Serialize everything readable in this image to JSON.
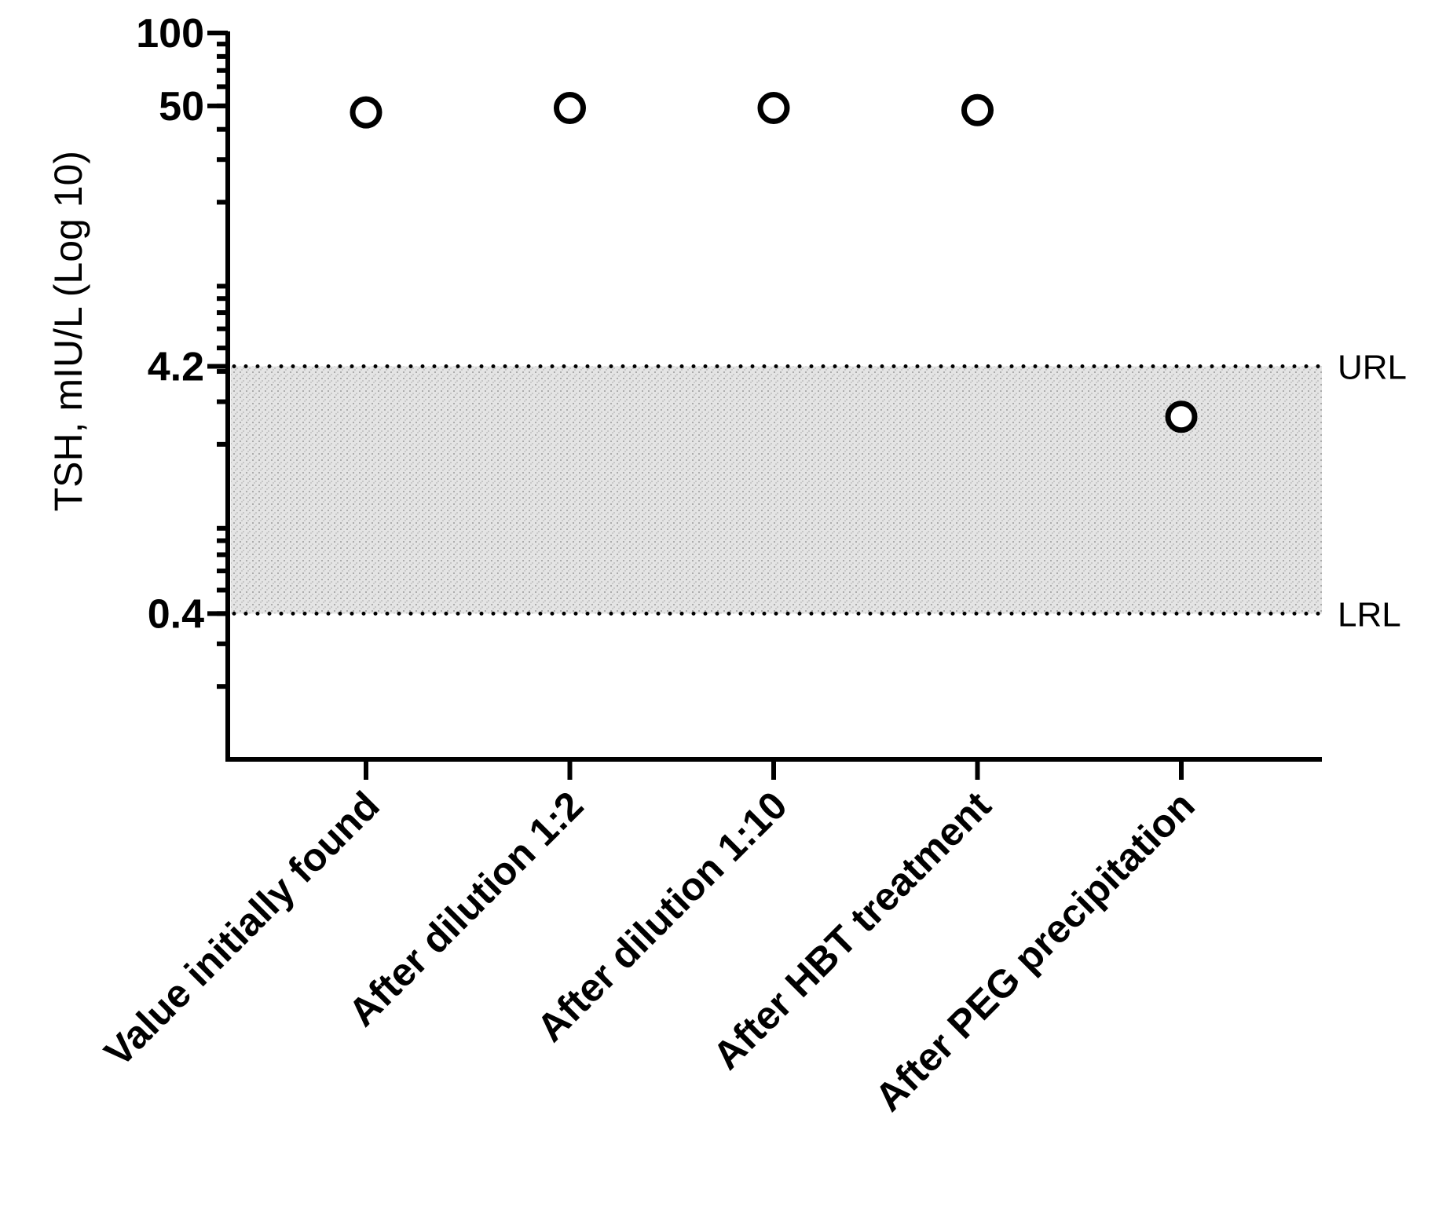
{
  "chart_data": {
    "type": "scatter",
    "title": "",
    "ylabel": "TSH, mIU/L (Log 10)",
    "xlabel": "",
    "y_scale": "log10",
    "ylim": [
      0.1,
      100
    ],
    "y_ticks_labeled": [
      {
        "value": 100,
        "label": "100"
      },
      {
        "value": 50,
        "label": "50"
      },
      {
        "value": 4.2,
        "label": "4.2"
      },
      {
        "value": 0.4,
        "label": "0.4"
      }
    ],
    "categories": [
      "Value initially found",
      "After dilution 1:2",
      "After dilution 1:10",
      "After HBT treatment",
      "After PEG precipitation"
    ],
    "values": [
      47,
      49,
      49,
      48,
      2.6
    ],
    "reference_range": {
      "upper": {
        "value": 4.2,
        "label": "URL"
      },
      "lower": {
        "value": 0.4,
        "label": "LRL"
      }
    },
    "grid": false,
    "marker": "open-circle",
    "colors": {
      "axis": "#000000",
      "marker": "#000000",
      "reference_band": "#dcdcdc",
      "reference_line": "#000000"
    }
  }
}
